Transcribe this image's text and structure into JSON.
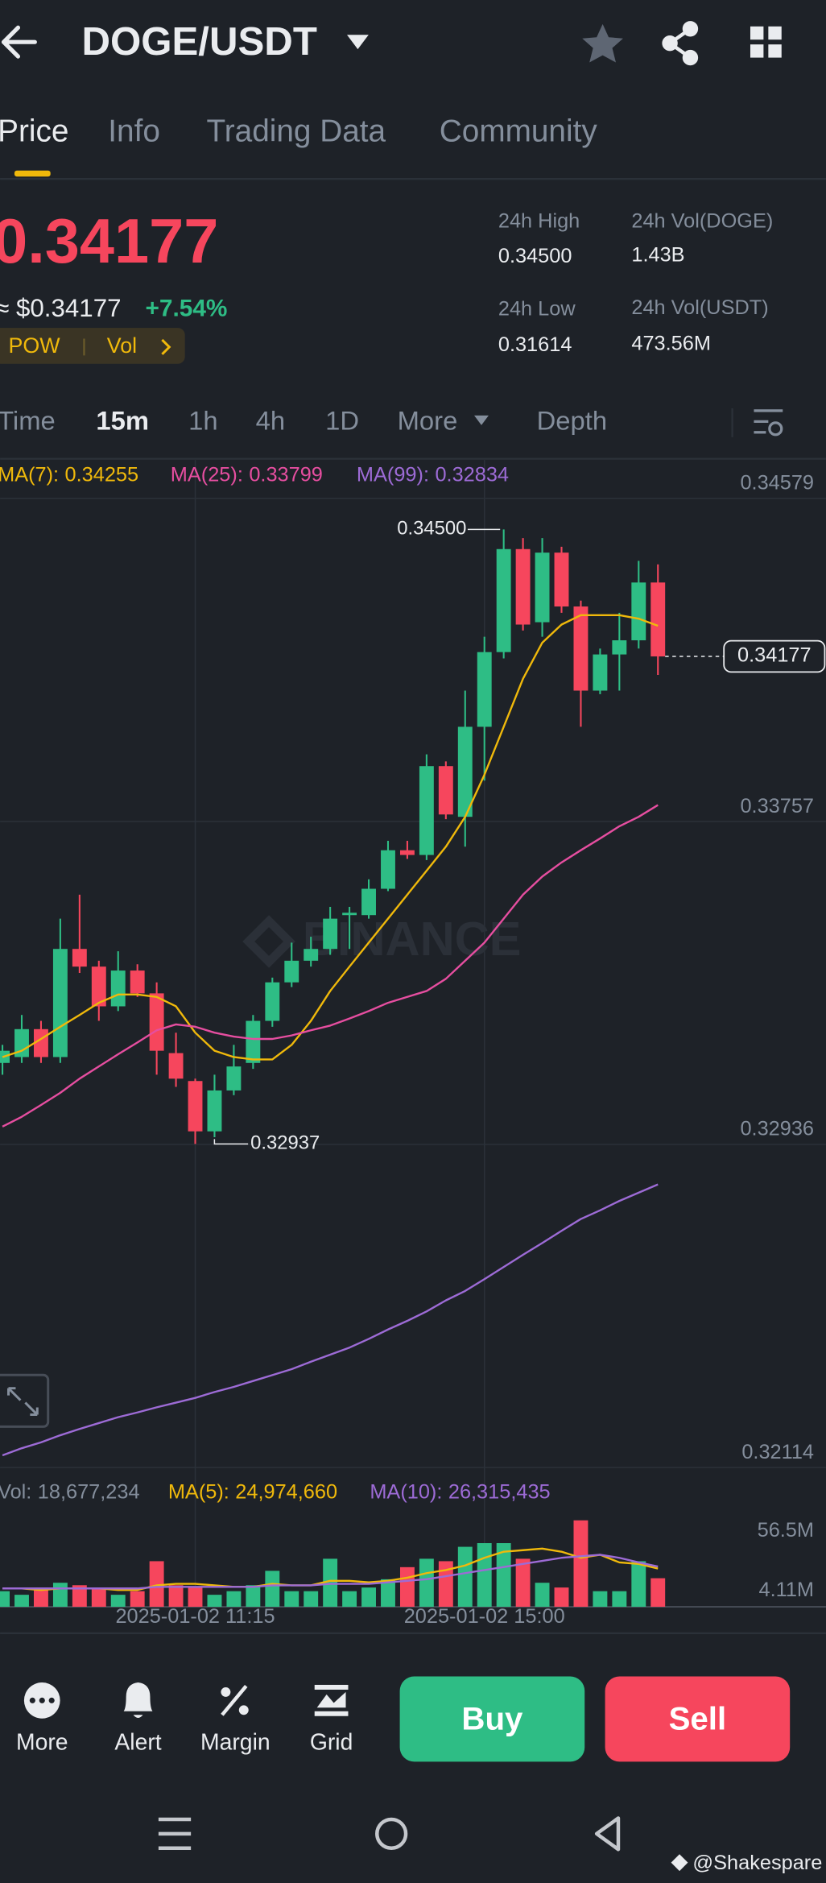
{
  "header": {
    "symbol": "DOGE/USDT"
  },
  "tabs": [
    "Price",
    "Info",
    "Trading Data",
    "Community"
  ],
  "ticker": {
    "last": "0.34177",
    "usd": "≈ $0.34177",
    "change": "+7.54%",
    "tags": [
      "POW",
      "Vol"
    ],
    "stats": [
      {
        "label": "24h High",
        "value": "0.34500"
      },
      {
        "label": "24h Vol(DOGE)",
        "value": "1.43B"
      },
      {
        "label": "24h Low",
        "value": "0.31614"
      },
      {
        "label": "24h Vol(USDT)",
        "value": "473.56M"
      }
    ]
  },
  "intervals": [
    "Time",
    "15m",
    "1h",
    "4h",
    "1D",
    "More",
    "Depth"
  ],
  "chart_data": [
    {
      "type": "candlestick",
      "categories": [
        null,
        null,
        null,
        null,
        null,
        null,
        null,
        null,
        null,
        null,
        "2025-01-02 11:15",
        null,
        null,
        null,
        null,
        null,
        null,
        null,
        null,
        null,
        null,
        null,
        null,
        null,
        null,
        "2025-01-02 15:00",
        null,
        null,
        null,
        null,
        null,
        null,
        null,
        null,
        null
      ],
      "open": [
        0.33143,
        0.33158,
        0.33229,
        0.33158,
        0.33433,
        0.33388,
        0.33287,
        0.33378,
        0.3332,
        0.33168,
        0.33097,
        0.32969,
        0.33073,
        0.33143,
        0.3325,
        0.33348,
        0.33403,
        0.33433,
        0.33519,
        0.33519,
        0.33586,
        0.33684,
        0.33672,
        0.33898,
        0.33769,
        0.33998,
        0.34188,
        0.3445,
        0.34264,
        0.34441,
        0.34304,
        0.3409,
        0.34182,
        0.34218,
        0.34365
      ],
      "high": [
        0.33189,
        0.33265,
        0.3325,
        0.3351,
        0.33571,
        0.33403,
        0.33427,
        0.33394,
        0.33348,
        0.3322,
        0.33103,
        0.33113,
        0.33189,
        0.33265,
        0.3336,
        0.33449,
        0.33464,
        0.3354,
        0.3354,
        0.3361,
        0.33708,
        0.33708,
        0.33928,
        0.3391,
        0.3409,
        0.34227,
        0.345,
        0.34478,
        0.34478,
        0.34456,
        0.34319,
        0.34197,
        0.34288,
        0.3442,
        0.34411
      ],
      "low": [
        0.33113,
        0.33143,
        0.33143,
        0.33143,
        0.33372,
        0.3325,
        0.33275,
        0.33311,
        0.33113,
        0.33082,
        0.32937,
        0.32954,
        0.33061,
        0.33128,
        0.33235,
        0.33336,
        0.33388,
        0.33418,
        0.33433,
        0.3351,
        0.3358,
        0.33662,
        0.33659,
        0.33763,
        0.33693,
        0.33861,
        0.34172,
        0.34243,
        0.34227,
        0.34288,
        0.33998,
        0.34081,
        0.3409,
        0.34197,
        0.3413
      ],
      "close": [
        0.33174,
        0.33229,
        0.33158,
        0.33433,
        0.33388,
        0.33287,
        0.33378,
        0.3332,
        0.33174,
        0.33103,
        0.32969,
        0.33073,
        0.33134,
        0.3325,
        0.33348,
        0.33403,
        0.33433,
        0.3351,
        0.33525,
        0.33586,
        0.33684,
        0.33672,
        0.33898,
        0.33775,
        0.33998,
        0.34188,
        0.3445,
        0.34258,
        0.34441,
        0.34304,
        0.3409,
        0.34182,
        0.34218,
        0.34365,
        0.34177
      ],
      "high_labels": [
        null,
        null,
        null,
        null,
        null,
        null,
        null,
        null,
        null,
        null,
        null,
        null,
        null,
        null,
        null,
        null,
        null,
        null,
        null,
        null,
        null,
        null,
        null,
        null,
        null,
        null,
        "0.34500",
        null,
        null,
        null,
        null,
        null,
        null,
        null,
        null
      ],
      "series": [
        {
          "name": "MA(7):",
          "color": "#f0b90b",
          "values": [
            0.33158,
            0.33174,
            0.33204,
            0.33235,
            0.33265,
            0.33296,
            0.33317,
            0.33317,
            0.33311,
            0.33287,
            0.3322,
            0.33174,
            0.33158,
            0.33152,
            0.33152,
            0.33189,
            0.3325,
            0.33326,
            0.33388,
            0.33449,
            0.3351,
            0.33571,
            0.33632,
            0.33693,
            0.33769,
            0.33876,
            0.33998,
            0.3412,
            0.34212,
            0.34258,
            0.34282,
            0.34282,
            0.34282,
            0.34273,
            0.34255
          ]
        },
        {
          "name": "MA(25):",
          "color": "#e64ea0",
          "values": [
            0.32981,
            0.33006,
            0.33036,
            0.33067,
            0.33103,
            0.33134,
            0.33165,
            0.33195,
            0.33226,
            0.33241,
            0.33235,
            0.3322,
            0.3321,
            0.33204,
            0.33204,
            0.33213,
            0.33226,
            0.33238,
            0.33256,
            0.33275,
            0.33296,
            0.33311,
            0.33326,
            0.33357,
            0.33403,
            0.33449,
            0.3351,
            0.33571,
            0.33617,
            0.33653,
            0.33684,
            0.33714,
            0.33745,
            0.33769,
            0.33799
          ]
        },
        {
          "name": "MA(99):",
          "color": "#9d6bd6",
          "values": [
            0.32145,
            0.32163,
            0.32178,
            0.32196,
            0.32212,
            0.32227,
            0.32242,
            0.32254,
            0.32267,
            0.32279,
            0.32291,
            0.32306,
            0.32319,
            0.32334,
            0.32349,
            0.32364,
            0.32383,
            0.32401,
            0.32419,
            0.32441,
            0.32465,
            0.32487,
            0.32511,
            0.32539,
            0.32563,
            0.32593,
            0.32624,
            0.32655,
            0.32685,
            0.32716,
            0.32746,
            0.32768,
            0.32792,
            0.32813,
            0.32834
          ]
        }
      ],
      "ylim": [
        0.32114,
        0.34579
      ],
      "yticks": [
        0.34579,
        0.33757,
        0.32936,
        0.32114
      ],
      "grid": true,
      "up_color": "#2ebd85",
      "down_color": "#f6465d",
      "watermark": "BINANCE"
    },
    {
      "type": "bar",
      "series": [
        {
          "name": "Vol:",
          "color": "#848e9c",
          "values": [
            10200000,
            7850000,
            12600000,
            15700000,
            14100000,
            12600000,
            7850000,
            10200000,
            29800000,
            14100000,
            12600000,
            7850000,
            10200000,
            14100000,
            23500000,
            10200000,
            10200000,
            31400000,
            10200000,
            12600000,
            18000000,
            25900000,
            31400000,
            29800000,
            39200000,
            41600000,
            41600000,
            31400000,
            15700000,
            12600000,
            56500000,
            10200000,
            10200000,
            29800000,
            18677234
          ],
          "value_labels": [
            null,
            null,
            null,
            null,
            null,
            null,
            null,
            null,
            null,
            null,
            null,
            null,
            null,
            null,
            null,
            null,
            null,
            null,
            null,
            null,
            null,
            null,
            null,
            null,
            null,
            null,
            null,
            null,
            null,
            null,
            null,
            null,
            null,
            null,
            "18,677,234"
          ]
        },
        {
          "name": "MA(5):",
          "color": "#f0b90b",
          "values": [
            12000000,
            12000000,
            11000000,
            12000000,
            12000000,
            12000000,
            11000000,
            11000000,
            14000000,
            15000000,
            15000000,
            14000000,
            13000000,
            13000000,
            15000000,
            14000000,
            14000000,
            17000000,
            17000000,
            16000000,
            17000000,
            19000000,
            22000000,
            24000000,
            27000000,
            32000000,
            36000000,
            37000000,
            38000000,
            36000000,
            32000000,
            34000000,
            29000000,
            28000000,
            24974660
          ],
          "value_labels": [
            null,
            null,
            null,
            null,
            null,
            null,
            null,
            null,
            null,
            null,
            null,
            null,
            null,
            null,
            null,
            null,
            null,
            null,
            null,
            null,
            null,
            null,
            null,
            null,
            null,
            null,
            null,
            null,
            null,
            null,
            null,
            null,
            null,
            null,
            "24,974,660"
          ]
        },
        {
          "name": "MA(10):",
          "color": "#9d6bd6",
          "values": [
            12000000,
            12000000,
            12000000,
            12000000,
            12000000,
            12000000,
            12000000,
            12000000,
            13000000,
            13000000,
            13000000,
            13000000,
            13000000,
            13000000,
            14000000,
            14000000,
            14000000,
            15000000,
            15000000,
            15000000,
            16000000,
            17000000,
            18000000,
            20000000,
            22000000,
            24000000,
            26000000,
            28000000,
            30000000,
            32000000,
            33000000,
            34000000,
            32000000,
            29000000,
            26315435
          ],
          "value_labels": [
            null,
            null,
            null,
            null,
            null,
            null,
            null,
            null,
            null,
            null,
            null,
            null,
            null,
            null,
            null,
            null,
            null,
            null,
            null,
            null,
            null,
            null,
            null,
            null,
            null,
            null,
            null,
            null,
            null,
            null,
            null,
            null,
            null,
            null,
            "26,315,435"
          ]
        }
      ],
      "ylim": [
        0,
        56500000
      ],
      "yticks": [
        {
          "value": 56500000,
          "label": "56.5M"
        },
        {
          "value": 4110000,
          "label": "4.11M"
        }
      ],
      "grid": false,
      "up_color": "#2ebd85",
      "down_color": "#f6465d"
    }
  ],
  "actions": [
    "More",
    "Alert",
    "Margin",
    "Grid"
  ],
  "buttons": {
    "buy": "Buy",
    "sell": "Sell"
  },
  "credit": "@Shakespare"
}
